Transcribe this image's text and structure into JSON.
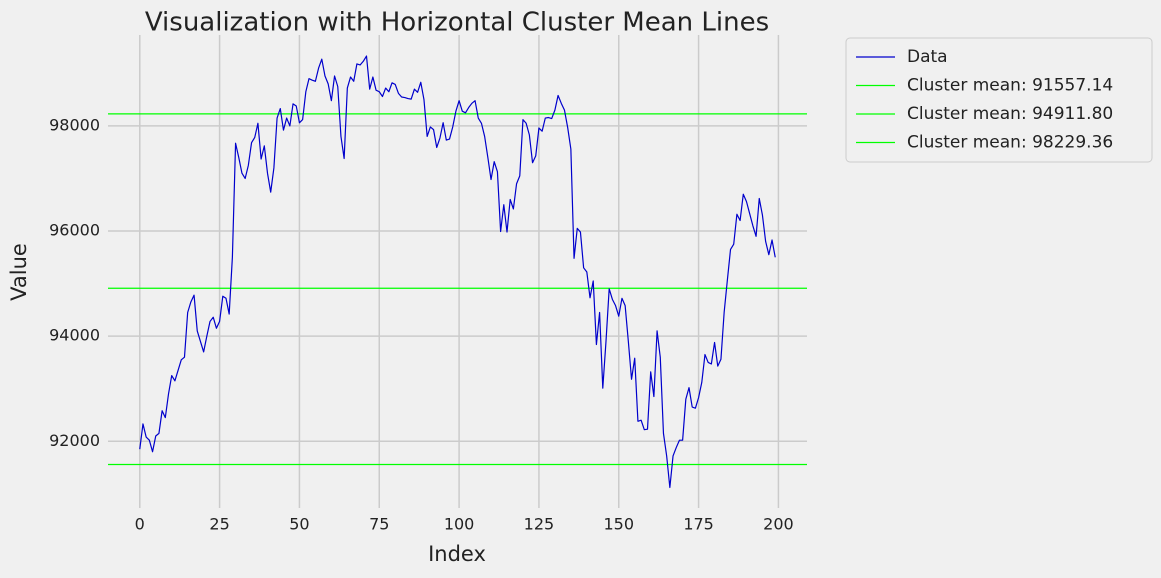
{
  "chart_data": {
    "type": "line",
    "title": "Visualization with Horizontal Cluster Mean Lines",
    "xlabel": "Index",
    "ylabel": "Value",
    "x": [
      0,
      1,
      2,
      3,
      4,
      5,
      6,
      7,
      8,
      9,
      10,
      11,
      12,
      13,
      14,
      15,
      16,
      17,
      18,
      19,
      20,
      21,
      22,
      23,
      24,
      25,
      26,
      27,
      28,
      29,
      30,
      31,
      32,
      33,
      34,
      35,
      36,
      37,
      38,
      39,
      40,
      41,
      42,
      43,
      44,
      45,
      46,
      47,
      48,
      49,
      50,
      51,
      52,
      53,
      54,
      55,
      56,
      57,
      58,
      59,
      60,
      61,
      62,
      63,
      64,
      65,
      66,
      67,
      68,
      69,
      70,
      71,
      72,
      73,
      74,
      75,
      76,
      77,
      78,
      79,
      80,
      81,
      82,
      83,
      84,
      85,
      86,
      87,
      88,
      89,
      90,
      91,
      92,
      93,
      94,
      95,
      96,
      97,
      98,
      99,
      100,
      101,
      102,
      103,
      104,
      105,
      106,
      107,
      108,
      109,
      110,
      111,
      112,
      113,
      114,
      115,
      116,
      117,
      118,
      119,
      120,
      121,
      122,
      123,
      124,
      125,
      126,
      127,
      128,
      129,
      130,
      131,
      132,
      133,
      134,
      135,
      136,
      137,
      138,
      139,
      140,
      141,
      142,
      143,
      144,
      145,
      146,
      147,
      148,
      149,
      150,
      151,
      152,
      153,
      154,
      155,
      156,
      157,
      158,
      159,
      160,
      161,
      162,
      163,
      164,
      165,
      166,
      167,
      168,
      169,
      170,
      171,
      172,
      173,
      174,
      175,
      176,
      177,
      178,
      179,
      180,
      181,
      182,
      183,
      184,
      185,
      186,
      187,
      188,
      189,
      190,
      191,
      192,
      193,
      194,
      195,
      196,
      197,
      198,
      199
    ],
    "series": [
      {
        "name": "Data",
        "color": "#0000cc",
        "values": [
          91850,
          92330,
          92080,
          92020,
          91800,
          92100,
          92150,
          92580,
          92450,
          92900,
          93250,
          93150,
          93350,
          93550,
          93600,
          94450,
          94650,
          94780,
          94100,
          93900,
          93700,
          94000,
          94280,
          94360,
          94150,
          94280,
          94760,
          94720,
          94420,
          95500,
          97670,
          97400,
          97100,
          97000,
          97250,
          97680,
          97780,
          98050,
          97370,
          97620,
          97100,
          96740,
          97200,
          98150,
          98330,
          97920,
          98150,
          98000,
          98420,
          98380,
          98060,
          98120,
          98650,
          98900,
          98870,
          98850,
          99100,
          99270,
          98950,
          98800,
          98480,
          98950,
          98750,
          97800,
          97380,
          98720,
          98930,
          98850,
          99180,
          99160,
          99230,
          99330,
          98700,
          98930,
          98680,
          98650,
          98560,
          98720,
          98650,
          98820,
          98790,
          98620,
          98550,
          98540,
          98520,
          98510,
          98700,
          98640,
          98830,
          98500,
          97800,
          97980,
          97930,
          97590,
          97770,
          98060,
          97730,
          97750,
          97980,
          98280,
          98480,
          98280,
          98250,
          98350,
          98430,
          98480,
          98150,
          98050,
          97800,
          97400,
          96980,
          97320,
          97130,
          95990,
          96500,
          95980,
          96600,
          96420,
          96900,
          97050,
          98120,
          98050,
          97830,
          97300,
          97430,
          97960,
          97900,
          98150,
          98160,
          98140,
          98300,
          98580,
          98430,
          98300,
          97970,
          97560,
          95480,
          96050,
          95980,
          95300,
          95220,
          94730,
          95050,
          93840,
          94450,
          93010,
          93900,
          94900,
          94700,
          94580,
          94380,
          94720,
          94580,
          93900,
          93180,
          93580,
          92380,
          92400,
          92220,
          92230,
          93320,
          92850,
          94100,
          93600,
          92150,
          91720,
          91120,
          91720,
          91880,
          92020,
          92020,
          92800,
          93020,
          92650,
          92630,
          92830,
          93120,
          93650,
          93500,
          93470,
          93880,
          93430,
          93560,
          94450,
          95060,
          95650,
          95750,
          96320,
          96200,
          96700,
          96560,
          96330,
          96100,
          95900,
          96620,
          96300,
          95800,
          95550,
          95830,
          95500
        ]
      }
    ],
    "hlines": [
      {
        "name": "Cluster mean: 91557.14",
        "value": 91557.14,
        "color": "#00ff00"
      },
      {
        "name": "Cluster mean: 94911.80",
        "value": 94911.8,
        "color": "#00ff00"
      },
      {
        "name": "Cluster mean: 98229.36",
        "value": 98229.36,
        "color": "#00ff00"
      }
    ],
    "xlim": [
      -9.95,
      208.95
    ],
    "xticks": [
      0,
      25,
      50,
      75,
      100,
      125,
      150,
      175,
      200
    ],
    "ylim": [
      90730,
      99730
    ],
    "yticks": [
      92000,
      94000,
      96000,
      98000
    ],
    "grid": true,
    "legend": "outside upper right"
  }
}
